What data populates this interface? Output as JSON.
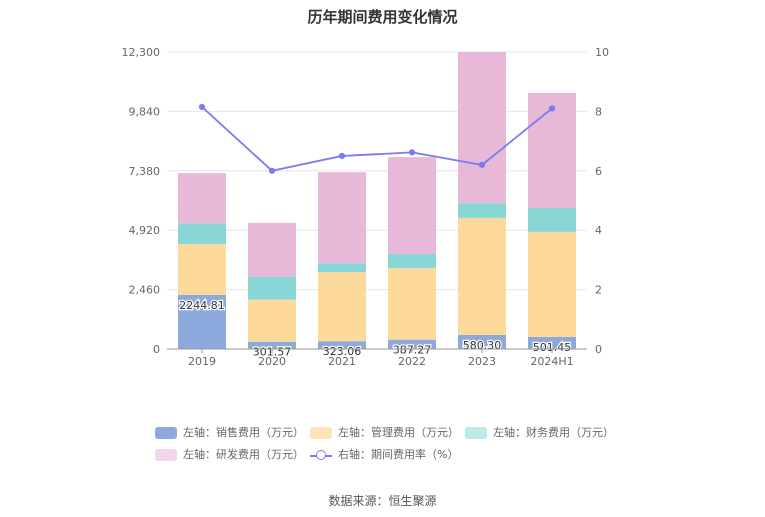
{
  "chart_data": {
    "type": "bar",
    "stacked": true,
    "title": "历年期间费用变化情况",
    "categories": [
      "2019",
      "2020",
      "2021",
      "2022",
      "2023",
      "2024H1"
    ],
    "left_axis": {
      "min": 0,
      "max": 12300,
      "ticks": [
        "0",
        "2,460",
        "4,920",
        "7,380",
        "9,840",
        "12,300"
      ]
    },
    "right_axis": {
      "min": 0,
      "max": 10,
      "ticks": [
        "0",
        "2",
        "4",
        "6",
        "8",
        "10"
      ]
    },
    "grid": true,
    "legend_position": "bottom",
    "series": [
      {
        "name": "左轴：销售费用（万元）",
        "color": "#8eaadc",
        "values": [
          2244.81,
          301.57,
          323.06,
          387.27,
          580.3,
          501.45
        ],
        "labels": [
          "2244.81",
          "301.57",
          "323.06",
          "387.27",
          "580.30",
          "501.45"
        ]
      },
      {
        "name": "左轴：管理费用（万元）",
        "color": "#fdd99c",
        "values": [
          2100,
          1750,
          2860,
          2960,
          4850,
          4350
        ]
      },
      {
        "name": "左轴：财务费用（万元）",
        "color": "#88d6d6",
        "values": [
          850,
          930,
          370,
          590,
          610,
          1000
        ]
      },
      {
        "name": "左轴：研发费用（万元）",
        "color": "#e8b8d8",
        "values": [
          2090,
          2240,
          3770,
          4010,
          6260,
          4750
        ]
      }
    ],
    "line_series": {
      "name": "右轴：期间费用率（%）",
      "color": "#7b7bf0",
      "values": [
        8.15,
        6.0,
        6.5,
        6.62,
        6.2,
        8.1
      ]
    }
  },
  "source": "数据来源：恒生聚源"
}
